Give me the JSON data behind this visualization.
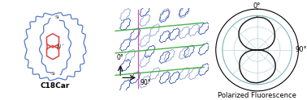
{
  "fig_width": 3.78,
  "fig_height": 1.24,
  "dpi": 100,
  "bg_color": "#ffffff",
  "c18car_label": "C18Car",
  "c18car_label_fontsize": 6.5,
  "c18car_label_bold": true,
  "mol_blue": "#5577cc",
  "mol_red": "#dd4444",
  "mol_dark": "#333333",
  "crystal_blue_dark": "#2244aa",
  "crystal_blue_light": "#8899cc",
  "crystal_green": "#33aa33",
  "crystal_pink": "#cc44aa",
  "polar_circle_color": "#88bbbb",
  "polar_grid_color": "#aacccc",
  "polar_curve_color": "#111111",
  "polar_label_0": "0°",
  "polar_label_90": "90°",
  "polar_title": "Polarized Fluorescence",
  "polar_title_fontsize": 6.0,
  "polar_label_fontsize": 6,
  "axis0_label": "0°",
  "axis90_label": "90°",
  "axis_label_fontsize": 5.5
}
